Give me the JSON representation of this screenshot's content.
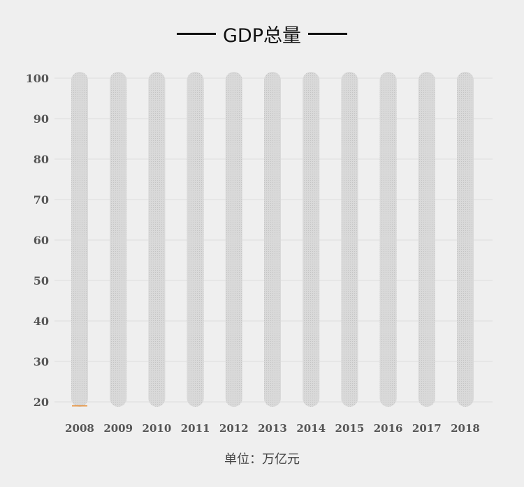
{
  "chart_data": {
    "type": "bar",
    "title": "GDP总量",
    "categories": [
      "2008",
      "2009",
      "2010",
      "2011",
      "2012",
      "2013",
      "2014",
      "2015",
      "2016",
      "2017",
      "2018"
    ],
    "series": [
      {
        "values": [
          19,
          0,
          0,
          0,
          0,
          0,
          0,
          0,
          0,
          0,
          0
        ]
      }
    ],
    "ylim": [
      20,
      100
    ],
    "yticks": [
      20,
      30,
      40,
      50,
      60,
      70,
      80,
      90,
      100
    ],
    "grid": true,
    "xlabel": "",
    "ylabel": "",
    "unit_label": "单位：万亿元",
    "colors": {
      "background_bar": "#d6d6d6",
      "value_bar": "#e8913a",
      "grid": "#dddddd",
      "tick_text": "#555555"
    }
  }
}
